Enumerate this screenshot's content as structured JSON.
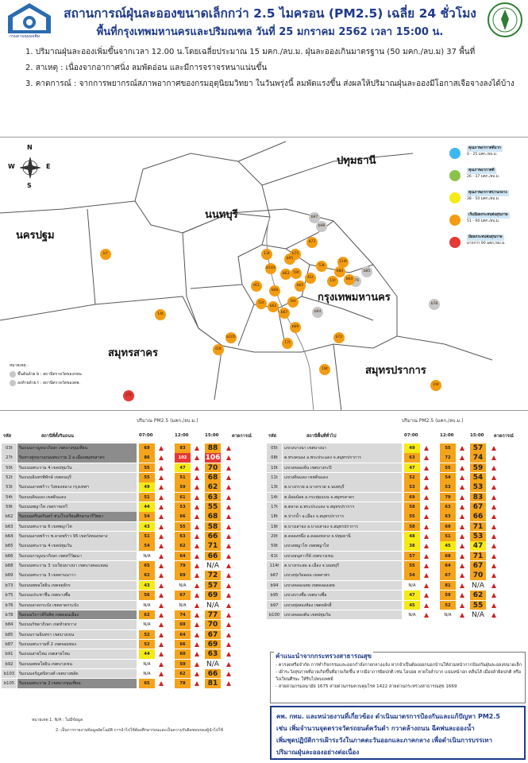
{
  "header": {
    "title": "สถานการณ์ฝุ่นละอองขนาดเล็กกว่า 2.5 ไมครอน (PM2.5) เฉลี่ย 24 ชั่วโมง",
    "subtitle": "พื้นที่กรุงเทพมหานครและปริมณฑล วันที่ 25 มกราคม 2562 เวลา 15:00 น.",
    "logo_text": "กรมควบคุมมลพิษ"
  },
  "notes": [
    "1. ปริมาณฝุ่นละอองเพิ่มขึ้นจากเวลา 12.00 น.โดยเฉลี่ยประมาณ 15 มคก./ลบ.ม. ฝุ่นละอองเกินมาตรฐาน (50 มคก./ลบ.ม) 37 พื้นที่",
    "2. สาเหตุ :   เนื่องจากอากาศนิ่ง ลมพัดอ่อน และมีการจราจรหนาแน่นขึ้น",
    "3. คาดการณ์ : จากการพยากรณ์สภาพอากาศของกรมอุตุนิยมวิทยา ในวันพรุ่งนี้ ลมพัดแรงขึ้น ส่งผลให้ปริมาณฝุ่นละอองมีโอกาสเจือจางลงได้บ้าง"
  ],
  "map": {
    "compass": {
      "n": "N",
      "s": "S",
      "e": "E",
      "w": "W"
    },
    "regions": [
      "ปทุมธานี",
      "นนทบุรี",
      "นครปฐม",
      "กรุงเทพมหานคร",
      "สมุทรสาคร",
      "สมุทรปราการ"
    ],
    "legend": [
      {
        "title": "คุณภาพอากาศดีมาก",
        "range": "0 - 25 มคก./ลบ.ม.",
        "color": "#3fb7f0"
      },
      {
        "title": "คุณภาพอากาศดี",
        "range": "26 - 37 มคก./ลบ.ม.",
        "color": "#8bc34a"
      },
      {
        "title": "คุณภาพอากาศปานกลาง",
        "range": "38 - 50 มคก./ลบ.ม.",
        "color": "#f5ea14"
      },
      {
        "title": "เริ่มมีผลกระทบต่อสุขภาพ",
        "range": "51 - 90 มคก./ลบ.ม.",
        "color": "#f39c12"
      },
      {
        "title": "มีผลกระทบต่อสุขภาพ",
        "range": "มากกว่า 90 มคก./ลบ.ม.",
        "color": "#e53935"
      }
    ],
    "note_title": "หมายเหตุ :",
    "note_b": "ขึ้นต้นด้วย b : สถานีตรวจวัดของกทม.",
    "note_t": "ลงท้ายด้วย t : สถานีตรวจวัดของคพ.",
    "stations": [
      {
        "id": "b97",
        "c": "gray"
      },
      {
        "id": "b98",
        "c": "gray"
      },
      {
        "id": "b73",
        "c": "orange"
      },
      {
        "id": "b75",
        "c": "orange"
      },
      {
        "id": "13t",
        "c": "orange"
      },
      {
        "id": "b95",
        "c": "orange"
      },
      {
        "id": "b103",
        "c": "orange"
      },
      {
        "id": "b63",
        "c": "orange"
      },
      {
        "id": "59t",
        "c": "orange"
      },
      {
        "id": "53t",
        "c": "orange"
      },
      {
        "id": "b84",
        "c": "orange"
      },
      {
        "id": "b85",
        "c": "gray"
      },
      {
        "id": "61t",
        "c": "orange"
      },
      {
        "id": "11t",
        "c": "orange"
      },
      {
        "id": "b76",
        "c": "gray"
      },
      {
        "id": "b65",
        "c": "orange"
      },
      {
        "id": "50t",
        "c": "orange"
      },
      {
        "id": "b64",
        "c": "orange"
      },
      {
        "id": "b68",
        "c": "orange"
      },
      {
        "id": "52t",
        "c": "orange"
      },
      {
        "id": "b62",
        "c": "orange"
      },
      {
        "id": "b67",
        "c": "orange"
      },
      {
        "id": "b94",
        "c": "gray"
      },
      {
        "id": "b69",
        "c": "orange"
      },
      {
        "id": "b105",
        "c": "orange"
      },
      {
        "id": "17t",
        "c": "orange"
      },
      {
        "id": "b78",
        "c": "gray"
      },
      {
        "id": "14t",
        "c": "orange"
      },
      {
        "id": "03t",
        "c": "orange"
      },
      {
        "id": "18t",
        "c": "orange"
      },
      {
        "id": "19t",
        "c": "orange"
      },
      {
        "id": "27t",
        "c": "red"
      },
      {
        "id": "b8",
        "c": "gray"
      },
      {
        "id": "b6",
        "c": "gray"
      },
      {
        "id": "b66",
        "c": "orange"
      },
      {
        "id": "b61",
        "c": "orange"
      },
      {
        "id": "b7",
        "c": "orange"
      },
      {
        "id": "t61",
        "c": "orange"
      },
      {
        "id": "b72",
        "c": "orange"
      },
      {
        "id": "114t",
        "c": "orange"
      }
    ]
  },
  "tables": {
    "unit_label": "ปริมาณ PM2.5 (มคก./ลบ.ม.)",
    "headers": {
      "code": "รหัส",
      "station": "สถานีที่ตั้งริมถนน",
      "station_right": "สถานีพื้นที่ทั่วไป",
      "t1": "07:00",
      "t2": "12:00",
      "t3": "15:00",
      "forecast": "คาดการณ์"
    },
    "left": [
      {
        "code": "03t",
        "name": "ริมถนนกาญจนาภิเษก เขตบางขุนเทียน",
        "v1": "69",
        "v2": "83",
        "v3": "88",
        "l1": "orange",
        "l2": "orange",
        "l3": "orange",
        "dark": true
      },
      {
        "code": "27t",
        "name": "ริมทางคู่ขนานถนนพระราม 2 อ.เมืองสมุทรสาคร",
        "v1": "86",
        "v2": "102",
        "v3": "106",
        "l1": "orange",
        "l2": "red",
        "l3": "red",
        "dark": true
      },
      {
        "code": "50t",
        "name": "ริมถนนพระราม 4 เขตปทุมวัน",
        "v1": "55",
        "v2": "47",
        "v3": "70",
        "l1": "orange",
        "l2": "yellow",
        "l3": "orange",
        "dark": false
      },
      {
        "code": "52t",
        "name": "ริมถนนอินทรพิทักษ์ เขตธนบุรี",
        "v1": "55",
        "v2": "51",
        "v3": "68",
        "l1": "orange",
        "l2": "orange",
        "l3": "orange",
        "dark": false
      },
      {
        "code": "53t",
        "name": "ริมถนนลาดพร้าว วังทองหลาง กรุงเทพฯ",
        "v1": "49",
        "v2": "59",
        "v3": "62",
        "l1": "yellow",
        "l2": "orange",
        "l3": "orange",
        "dark": false
      },
      {
        "code": "54t",
        "name": "ริมถนนดินแดง เขตดินแดง",
        "v1": "51",
        "v2": "61",
        "v3": "63",
        "l1": "orange",
        "l2": "orange",
        "l3": "orange",
        "dark": false
      },
      {
        "code": "59t",
        "name": "ริมถนนพญาไท เขตราชเทวี",
        "v1": "44",
        "v2": "53",
        "v3": "55",
        "l1": "yellow",
        "l2": "orange",
        "l3": "orange",
        "dark": false
      },
      {
        "code": "b62",
        "name": "ริมถนนศรีนครินทร์ ช่วงโรงเรียนศึกษานารีวิทยา",
        "v1": "54",
        "v2": "66",
        "v3": "68",
        "l1": "orange",
        "l2": "orange",
        "l3": "orange",
        "dark": true
      },
      {
        "code": "b63",
        "name": "ริมถนนพระราม 6 เขตพญาไท",
        "v1": "43",
        "v2": "55",
        "v3": "58",
        "l1": "yellow",
        "l2": "orange",
        "l3": "orange",
        "dark": false
      },
      {
        "code": "b64",
        "name": "ริมถนนลาดพร้าว ซ.ลาดพร้าว 95 เขตวังทองหลาง",
        "v1": "51",
        "v2": "63",
        "v3": "66",
        "l1": "orange",
        "l2": "orange",
        "l3": "orange",
        "dark": false
      },
      {
        "code": "b65",
        "name": "ริมถนนพระราม 4 เขตปทุมวัน",
        "v1": "54",
        "v2": "62",
        "v3": "71",
        "l1": "orange",
        "l2": "orange",
        "l3": "orange",
        "dark": false
      },
      {
        "code": "b66",
        "name": "ริมถนนกาญจนาภิเษก เขตทวีวัฒนา",
        "v1": "N/A",
        "v2": "64",
        "v3": "66",
        "l1": "none",
        "l2": "orange",
        "l3": "orange",
        "dark": false
      },
      {
        "code": "b68",
        "name": "ริมถนนพระราม 3 วงเวียนบางนา เขตบางคอแหลม",
        "v1": "65",
        "v2": "79",
        "v3": "N/A",
        "l1": "orange",
        "l2": "orange",
        "l3": "none",
        "dark": false
      },
      {
        "code": "b69",
        "name": "ริมถนนพระราม 3 เขตยานนาวา",
        "v1": "62",
        "v2": "69",
        "v3": "72",
        "l1": "orange",
        "l2": "orange",
        "l3": "orange",
        "dark": false
      },
      {
        "code": "b73",
        "name": "ริมถนนพหลโยธิน เขตจตุจักร",
        "v1": "43",
        "v2": "N/A",
        "v3": "57",
        "l1": "yellow",
        "l2": "none",
        "l3": "orange",
        "dark": false
      },
      {
        "code": "b75",
        "name": "ริมถนนประชาชื่น เขตบางซื่อ",
        "v1": "56",
        "v2": "67",
        "v3": "69",
        "l1": "orange",
        "l2": "orange",
        "l3": "orange",
        "dark": false
      },
      {
        "code": "b76",
        "name": "ริมถนนลาดกระบัง เขตลาดกระบัง",
        "v1": "N/A",
        "v2": "N/A",
        "v3": "N/A",
        "l1": "none",
        "l2": "none",
        "l3": "none",
        "dark": false
      },
      {
        "code": "b78",
        "name": "ริมถนนวิภาวดีรังสิต เขตดอนเมือง",
        "v1": "62",
        "v2": "74",
        "v3": "77",
        "l1": "orange",
        "l2": "orange",
        "l3": "orange",
        "dark": true
      },
      {
        "code": "b84",
        "name": "ริมถนนรัชดาภิเษก เขตห้วยขวาง",
        "v1": "N/A",
        "v2": "69",
        "v3": "70",
        "l1": "none",
        "l2": "orange",
        "l3": "orange",
        "dark": false
      },
      {
        "code": "b85",
        "name": "ริมถนนรามอินทรา เขตบางเขน",
        "v1": "52",
        "v2": "64",
        "v3": "67",
        "l1": "orange",
        "l2": "orange",
        "l3": "orange",
        "dark": false
      },
      {
        "code": "b87",
        "name": "ริมถนนพระรามที่ 2 เขตจอมทอง",
        "v1": "52",
        "v2": "66",
        "v3": "69",
        "l1": "orange",
        "l2": "orange",
        "l3": "orange",
        "dark": false
      },
      {
        "code": "b91",
        "name": "ริมถนนสายไหม เขตสายไหม",
        "v1": "44",
        "v2": "60",
        "v3": "63",
        "l1": "yellow",
        "l2": "orange",
        "l3": "orange",
        "dark": false
      },
      {
        "code": "b92",
        "name": "ริมถนนพหลโยธิน เขตบางเขน",
        "v1": "N/A",
        "v2": "59",
        "v3": "N/A",
        "l1": "none",
        "l2": "orange",
        "l3": "none",
        "dark": false
      },
      {
        "code": "b103",
        "name": "ริมถนนจรัญสนิทวงศ์ เขตบางพลัด",
        "v1": "N/A",
        "v2": "62",
        "v3": "66",
        "l1": "none",
        "l2": "orange",
        "l3": "orange",
        "dark": false
      },
      {
        "code": "b105",
        "name": "ริมถนนพระราม 2 เขตบางขุนเทียน",
        "v1": "65",
        "v2": "78",
        "v3": "81",
        "l1": "orange",
        "l2": "orange",
        "l3": "orange",
        "dark": true
      }
    ],
    "right": [
      {
        "code": "05t",
        "name": "แขวงบางนา เขตบางนา",
        "v1": "49",
        "v2": "55",
        "v3": "57",
        "l1": "yellow",
        "l2": "orange",
        "l3": "orange"
      },
      {
        "code": "08t",
        "name": "ต.ทรงคนอง อ.พระประแดง จ.สมุทรปราการ",
        "v1": "63",
        "v2": "72",
        "v3": "74",
        "l1": "orange",
        "l2": "orange",
        "l3": "orange"
      },
      {
        "code": "10t",
        "name": "แขวงคลองจั่น เขตบางกะปิ",
        "v1": "47",
        "v2": "55",
        "v3": "59",
        "l1": "yellow",
        "l2": "orange",
        "l3": "orange"
      },
      {
        "code": "11t",
        "name": "แขวงดินแดง เขตดินแดง",
        "v1": "52",
        "v2": "54",
        "v3": "54",
        "l1": "orange",
        "l2": "orange",
        "l3": "orange"
      },
      {
        "code": "13t",
        "name": "ต.บางกรวย อ.บางกรวย จ.นนทบุรี",
        "v1": "53",
        "v2": "53",
        "v3": "53",
        "l1": "orange",
        "l2": "orange",
        "l3": "orange"
      },
      {
        "code": "14t",
        "name": "ต.อ้อมน้อย อ.กระทุ่มแบน จ.สมุทรสาคร",
        "v1": "69",
        "v2": "79",
        "v3": "83",
        "l1": "orange",
        "l2": "orange",
        "l3": "orange"
      },
      {
        "code": "17t",
        "name": "ต.ตลาด อ.พระประแดง จ.สมุทรปราการ",
        "v1": "58",
        "v2": "63",
        "v3": "67",
        "l1": "orange",
        "l2": "orange",
        "l3": "orange"
      },
      {
        "code": "18t",
        "name": "ต.ปากน้ำ อ.เมือง จ.สมุทรปราการ",
        "v1": "55",
        "v2": "63",
        "v3": "66",
        "l1": "orange",
        "l2": "orange",
        "l3": "orange"
      },
      {
        "code": "19t",
        "name": "ต.บางเสาธง อ.บางเสาธง จ.สมุทรปราการ",
        "v1": "58",
        "v2": "69",
        "v3": "71",
        "l1": "orange",
        "l2": "orange",
        "l3": "orange"
      },
      {
        "code": "20t",
        "name": "ต.คลองหนึ่ง อ.คลองหลวง จ.ปทุมธานี",
        "v1": "48",
        "v2": "51",
        "v3": "53",
        "l1": "yellow",
        "l2": "orange",
        "l3": "orange"
      },
      {
        "code": "59t",
        "name": "แขวงพญาไท เขตพญาไท",
        "v1": "38",
        "v2": "45",
        "v3": "47",
        "l1": "yellow",
        "l2": "yellow",
        "l3": "yellow"
      },
      {
        "code": "61t",
        "name": "แขวงอนุสาวรีย์ เขตบางเขน",
        "v1": "57",
        "v2": "68",
        "v3": "71",
        "l1": "orange",
        "l2": "orange",
        "l3": "orange"
      },
      {
        "code": "114t",
        "name": "ต.บางกระสอ อ.เมือง จ.นนทบุรี",
        "v1": "55",
        "v2": "64",
        "v3": "67",
        "l1": "orange",
        "l2": "orange",
        "l3": "orange"
      },
      {
        "code": "b67",
        "name": "แขวงทุ่งวัดดอน เขตสาทร",
        "v1": "54",
        "v2": "67",
        "v3": "70",
        "l1": "orange",
        "l2": "orange",
        "l3": "orange"
      },
      {
        "code": "b94",
        "name": "แขวงคลองเตย เขตคลองเตย",
        "v1": "N/A",
        "v2": "81",
        "v3": "N/A",
        "l1": "none",
        "l2": "orange",
        "l3": "none"
      },
      {
        "code": "b95",
        "name": "แขวงบางซื่อ เขตบางซื่อ",
        "v1": "47",
        "v2": "59",
        "v3": "62",
        "l1": "yellow",
        "l2": "orange",
        "l3": "orange"
      },
      {
        "code": "b97",
        "name": "แขวงทุ่งสองห้อง เขตหลักสี่",
        "v1": "45",
        "v2": "52",
        "v3": "55",
        "l1": "yellow",
        "l2": "orange",
        "l3": "orange"
      },
      {
        "code": "b100",
        "name": "แขวงคลองตัน เขตปทุมวัน",
        "v1": "N/A",
        "v2": "N/A",
        "v3": "N/A",
        "l1": "none",
        "l2": "none",
        "l3": "none"
      }
    ]
  },
  "footnote": [
    "หมายเหตุ 1. N/A : ไม่มีข้อมูล",
    "2. เป็นการรายงานข้อมูลอัตโนมัติ การนำไปใช้ต้องศึกษาก่อนและเป็นความรับผิดชอบของผู้นำไปใช้"
  ],
  "advice": {
    "title": "คำแนะนำจากกระทรวงสาธารณสุข",
    "items": [
      "- ควรงดหรือจำกัด การทำกิจกรรมและออกกำลังกายกลางแจ้ง หากจำเป็นต้องออกนอกบ้านให้สวมหน้ากากป้องกันฝุ่นละอองขนาดเล็ก",
      "- เฝ้าระวังสุขภาพที่อาจเกิดขึ้นที่อาจเกิดขึ้น หากมีอาการผิดปกติ เช่น ไอบ่อย หายใจลำบาก แน่นหน้าอก คลื่นไส้ เมื่อยล้าผิดปกติ หรือวิงเวียนศีรษะ ให้รีบไปพบแพทย์",
      "- สายด่วนกรมอนามัย  1675 สายด่วนกรมควบคุมโรค 1422 สายด่วนกระทรวงสาธารณสุข 1669"
    ]
  },
  "warning": [
    "คพ. กทม. และหน่วยงานที่เกี่ยวข้อง ดำเนินมาตรการป้องกันและแก้ปัญหา PM2.5",
    "เช่น เพิ่มจำนวนจุดตรวจวัดรถยนต์ควันดำ กวาดล้างถนน ฉีดพ่นละอองน้ำ",
    "เพิ่มชุดปฏิบัติการเฝ้าระวังในภาคตะวันออกและภาคกลาง เพื่อดำเนินการบรรเทา",
    "ปริมาณฝุ่นละอองอย่างต่อเนื่อง"
  ]
}
